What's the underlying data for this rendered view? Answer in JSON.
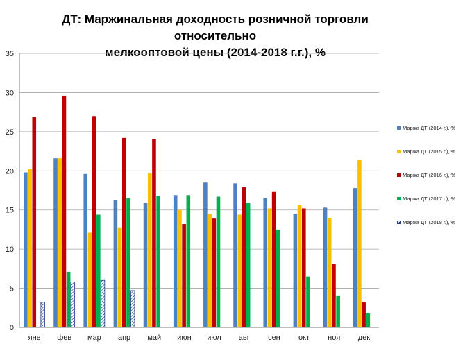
{
  "chart_data": {
    "type": "bar",
    "title_line1": "ДТ: Маржинальная доходность розничной торговли относительно",
    "title_line2": "мелкооптовой цены (2014-2018 г.г.), %",
    "categories": [
      "янв",
      "фев",
      "мар",
      "апр",
      "май",
      "июн",
      "июл",
      "авг",
      "сен",
      "окт",
      "ноя",
      "дек"
    ],
    "ylim": [
      0,
      35
    ],
    "yticks": [
      0,
      5,
      10,
      15,
      20,
      25,
      30,
      35
    ],
    "grid": true,
    "legend_position": "right",
    "series": [
      {
        "name": "Маржа ДТ (2014 г.), %",
        "color": "#4f81bd",
        "pattern": "solid",
        "values": [
          19.8,
          21.6,
          19.6,
          16.3,
          15.9,
          16.9,
          18.5,
          18.4,
          16.5,
          14.5,
          15.3,
          17.8
        ]
      },
      {
        "name": "Маржа ДТ (2015 г.), %",
        "color": "#f8c000",
        "pattern": "solid",
        "values": [
          20.2,
          21.6,
          12.1,
          12.7,
          19.7,
          15.0,
          14.5,
          14.4,
          15.2,
          15.6,
          14.0,
          21.4
        ]
      },
      {
        "name": "Маржа ДТ (2016 г.), %",
        "color": "#c00000",
        "pattern": "solid",
        "values": [
          26.9,
          29.6,
          27.0,
          24.2,
          24.1,
          13.2,
          13.9,
          17.9,
          17.3,
          15.2,
          8.1,
          3.2
        ]
      },
      {
        "name": "Маржа ДТ (2017 г.), %",
        "color": "#00b050",
        "pattern": "solid",
        "values": [
          null,
          7.1,
          14.4,
          16.5,
          16.8,
          16.9,
          16.7,
          15.9,
          12.5,
          6.5,
          4.0,
          1.8
        ]
      },
      {
        "name": "Маржа ДТ (2018 г.), %",
        "color": "#1f3a8a",
        "pattern": "hatched",
        "values": [
          3.2,
          5.8,
          6.0,
          4.7,
          null,
          null,
          null,
          null,
          null,
          null,
          null,
          null
        ]
      }
    ]
  }
}
